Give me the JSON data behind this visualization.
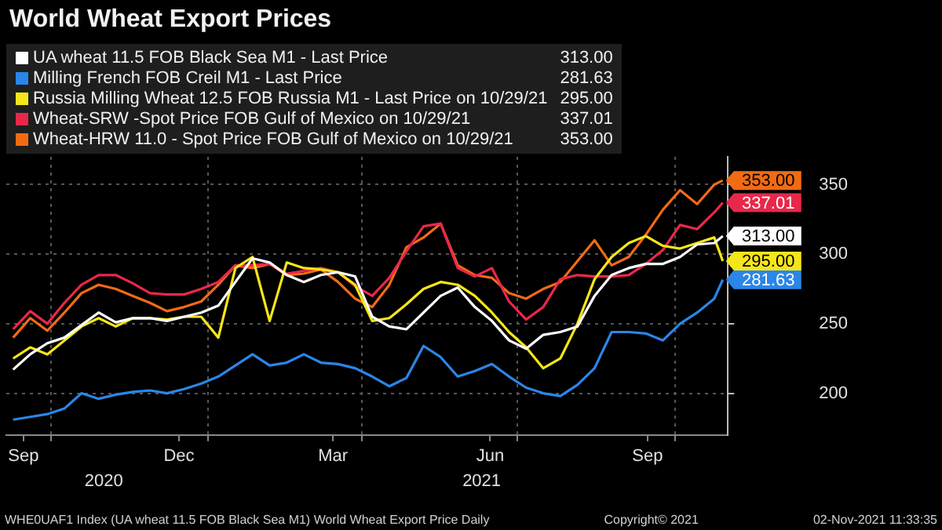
{
  "chart_data": {
    "type": "line",
    "title": "World Wheat Export Prices",
    "x": [
      "2020-09-09",
      "2020-09-19",
      "2020-09-29",
      "2020-10-09",
      "2020-10-19",
      "2020-10-29",
      "2020-11-08",
      "2020-11-18",
      "2020-11-28",
      "2020-12-08",
      "2020-12-18",
      "2020-12-28",
      "2021-01-07",
      "2021-01-17",
      "2021-01-27",
      "2021-02-06",
      "2021-02-16",
      "2021-02-26",
      "2021-03-08",
      "2021-03-18",
      "2021-03-28",
      "2021-04-07",
      "2021-04-17",
      "2021-04-27",
      "2021-05-07",
      "2021-05-17",
      "2021-05-27",
      "2021-06-06",
      "2021-06-16",
      "2021-06-26",
      "2021-07-06",
      "2021-07-16",
      "2021-07-26",
      "2021-08-05",
      "2021-08-15",
      "2021-08-25",
      "2021-09-04",
      "2021-09-14",
      "2021-09-24",
      "2021-10-04",
      "2021-10-14",
      "2021-10-24",
      "2021-10-29"
    ],
    "series": [
      {
        "name": "UA wheat 11.5 FOB Black Sea M1 - Last Price",
        "color": "#ffffff",
        "values": [
          217,
          228,
          236,
          240,
          249,
          258,
          251,
          254,
          254,
          252,
          255,
          258,
          263,
          280,
          297,
          294,
          285,
          280,
          285,
          287,
          284,
          255,
          248,
          246,
          258,
          270,
          276,
          262,
          252,
          238,
          232,
          242,
          244,
          248,
          270,
          285,
          290,
          293,
          293,
          298,
          307,
          308,
          313
        ],
        "value_labels": [
          null,
          null,
          null,
          null,
          null,
          null,
          null,
          null,
          null,
          null,
          null,
          null,
          null,
          null,
          null,
          null,
          null,
          null,
          null,
          null,
          null,
          null,
          null,
          null,
          null,
          null,
          null,
          null,
          null,
          null,
          null,
          null,
          null,
          null,
          null,
          null,
          null,
          null,
          null,
          null,
          null,
          null,
          "313.00"
        ]
      },
      {
        "name": "Milling French FOB Creil M1 - Last Price",
        "color": "#2a86e8",
        "values": [
          181,
          183,
          185,
          189,
          200,
          196,
          199,
          201,
          202,
          200,
          203,
          207,
          212,
          220,
          228,
          220,
          222,
          228,
          222,
          221,
          218,
          212,
          205,
          211,
          234,
          226,
          212,
          216,
          221,
          212,
          204,
          200,
          198,
          206,
          218,
          244,
          244,
          243,
          238,
          250,
          258,
          268,
          281.63
        ],
        "value_labels": [
          null,
          null,
          null,
          null,
          null,
          null,
          null,
          null,
          null,
          null,
          null,
          null,
          null,
          null,
          null,
          null,
          null,
          null,
          null,
          null,
          null,
          null,
          null,
          null,
          null,
          null,
          null,
          null,
          null,
          null,
          null,
          null,
          null,
          null,
          null,
          null,
          null,
          null,
          null,
          null,
          null,
          null,
          "281.63"
        ]
      },
      {
        "name": "Russia Milling Wheat 12.5 FOB Russia M1 - Last Price on 10/29/21",
        "color": "#f5e61a",
        "values": [
          225,
          233,
          228,
          238,
          248,
          254,
          248,
          254,
          254,
          253,
          255,
          255,
          240,
          290,
          298,
          252,
          294,
          290,
          289,
          287,
          278,
          252,
          254,
          264,
          275,
          280,
          278,
          270,
          258,
          244,
          233,
          218,
          225,
          250,
          282,
          298,
          308,
          313,
          306,
          304,
          308,
          312,
          295
        ],
        "value_labels": [
          null,
          null,
          null,
          null,
          null,
          null,
          null,
          null,
          null,
          null,
          null,
          null,
          null,
          null,
          null,
          null,
          null,
          null,
          null,
          null,
          null,
          null,
          null,
          null,
          null,
          null,
          null,
          null,
          null,
          null,
          null,
          null,
          null,
          null,
          null,
          null,
          null,
          null,
          null,
          null,
          null,
          null,
          "295.00"
        ]
      },
      {
        "name": "Wheat-SRW -Spot Price FOB Gulf of Mexico on 10/29/21",
        "color": "#e8284a",
        "values": [
          246,
          259,
          250,
          265,
          278,
          285,
          285,
          279,
          272,
          271,
          271,
          275,
          280,
          292,
          292,
          293,
          286,
          288,
          290,
          287,
          277,
          270,
          283,
          302,
          320,
          322,
          290,
          284,
          290,
          266,
          253,
          262,
          282,
          285,
          284,
          284,
          285,
          293,
          303,
          321,
          318,
          330,
          337.01
        ],
        "value_labels": [
          null,
          null,
          null,
          null,
          null,
          null,
          null,
          null,
          null,
          null,
          null,
          null,
          null,
          null,
          null,
          null,
          null,
          null,
          null,
          null,
          null,
          null,
          null,
          null,
          null,
          null,
          null,
          null,
          null,
          null,
          null,
          null,
          null,
          null,
          null,
          null,
          null,
          null,
          null,
          null,
          null,
          null,
          "337.01"
        ]
      },
      {
        "name": "Wheat-HRW 11.0 - Spot Price FOB Gulf of Mexico on 10/29/21",
        "color": "#f26b12",
        "values": [
          240,
          254,
          245,
          258,
          272,
          278,
          275,
          270,
          265,
          259,
          262,
          266,
          278,
          292,
          290,
          293,
          285,
          286,
          289,
          280,
          268,
          262,
          278,
          305,
          312,
          322,
          292,
          285,
          283,
          272,
          268,
          275,
          280,
          295,
          310,
          292,
          298,
          314,
          332,
          346,
          336,
          350,
          353
        ],
        "value_labels": [
          null,
          null,
          null,
          null,
          null,
          null,
          null,
          null,
          null,
          null,
          null,
          null,
          null,
          null,
          null,
          null,
          null,
          null,
          null,
          null,
          null,
          null,
          null,
          null,
          null,
          null,
          null,
          null,
          null,
          null,
          null,
          null,
          null,
          null,
          null,
          null,
          null,
          null,
          null,
          null,
          null,
          null,
          "353.00"
        ]
      }
    ],
    "xlim": [
      "2020-09-05",
      "2021-11-01"
    ],
    "xticks": [
      {
        "value": "2020-09-15",
        "label": "Sep"
      },
      {
        "value": "2020-10-01",
        "label": null
      },
      {
        "value": "2020-12-15",
        "label": "Dec"
      },
      {
        "value": "2021-01-01",
        "label": null
      },
      {
        "value": "2021-03-15",
        "label": "Mar"
      },
      {
        "value": "2021-04-01",
        "label": null
      },
      {
        "value": "2021-06-15",
        "label": "Jun"
      },
      {
        "value": "2021-07-01",
        "label": null
      },
      {
        "value": "2021-09-15",
        "label": "Sep"
      },
      {
        "value": "2021-10-01",
        "label": null
      }
    ],
    "x2lim": [
      "2020-09-05",
      "2021-11-01"
    ],
    "x2ticks": [
      {
        "value": "2020-11-01",
        "label": "2020"
      },
      {
        "value": "2021-06-10",
        "label": "2021"
      }
    ],
    "ylim": [
      170,
      370
    ],
    "yticks": [
      200,
      250,
      300,
      350
    ],
    "grid": true,
    "legend": "top left",
    "annotations": [
      "WHE0UAF1 Index (UA wheat 11.5 FOB Black Sea M1) World Wheat Export Price  Daily",
      "Copyright© 2021",
      "02-Nov-2021 11:33:35"
    ]
  }
}
